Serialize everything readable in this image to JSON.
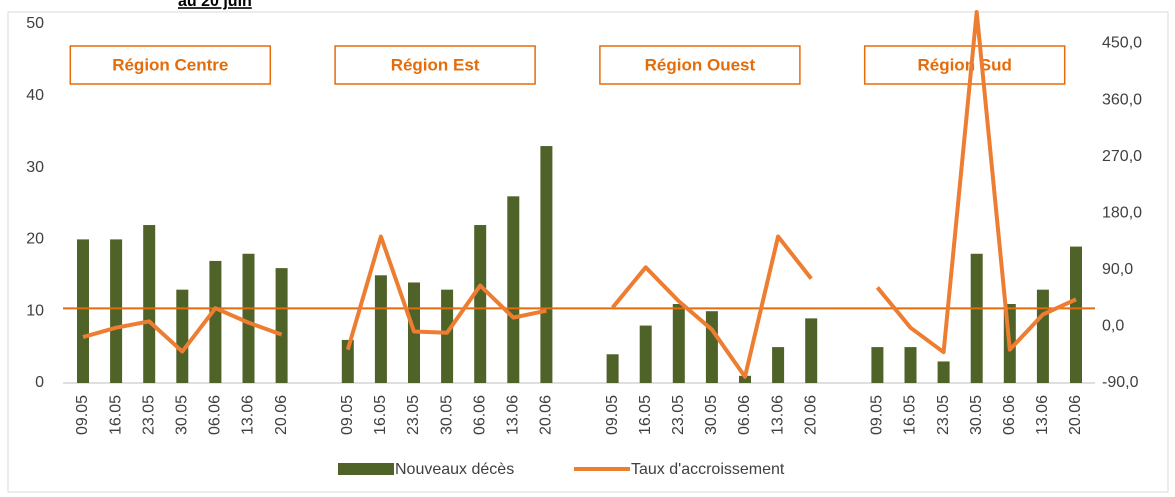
{
  "chart_data": {
    "type": "bar_line",
    "title": "au 20 juin",
    "categories": [
      "09.05",
      "16.05",
      "23.05",
      "30.05",
      "06.06",
      "13.06",
      "20.06",
      null,
      "09.05",
      "16.05",
      "23.05",
      "30.05",
      "06.06",
      "13.06",
      "20.06",
      null,
      "09.05",
      "16.05",
      "23.05",
      "30.05",
      "06.06",
      "13.06",
      "20.06",
      null,
      "09.05",
      "16.05",
      "23.05",
      "30.05",
      "06.06",
      "13.06",
      "20.06"
    ],
    "regions": [
      "Région Centre",
      "Région Est",
      "Région Ouest",
      "Région Sud"
    ],
    "series": [
      {
        "name": "Nouveaux décès",
        "color": "#4f6228",
        "kind": "bar",
        "values": [
          20,
          20,
          22,
          13,
          17,
          18,
          16,
          null,
          6,
          15,
          14,
          13,
          22,
          26,
          33,
          null,
          4,
          8,
          11,
          10,
          1,
          5,
          9,
          null,
          5,
          5,
          3,
          18,
          11,
          13,
          19
        ]
      },
      {
        "name": "Taux d'accroissement",
        "color": "#ed7d31",
        "kind": "line",
        "axis": "y2",
        "values": [
          -17,
          -2,
          8,
          -40,
          29,
          6,
          -13,
          null,
          -37,
          143,
          -8,
          -10,
          65,
          14,
          25,
          null,
          30,
          94,
          40,
          -5,
          -80,
          143,
          76,
          null,
          62,
          -2,
          -41,
          500,
          -37,
          19,
          43
        ]
      }
    ],
    "hline": 10.4,
    "ylim": [
      0,
      50
    ],
    "yticks": [
      0,
      10,
      20,
      30,
      40,
      50
    ],
    "y2lim": [
      -90,
      481
    ],
    "y2ticks": [
      {
        "value": -90,
        "label": "-90,0"
      },
      {
        "value": 0,
        "label": "0,0"
      },
      {
        "value": 90,
        "label": "90,0"
      },
      {
        "value": 180,
        "label": "180,0"
      },
      {
        "value": 270,
        "label": "270,0"
      },
      {
        "value": 360,
        "label": "360,0"
      },
      {
        "value": 450,
        "label": "450,0"
      }
    ],
    "grid": false,
    "legend": "bottom"
  }
}
